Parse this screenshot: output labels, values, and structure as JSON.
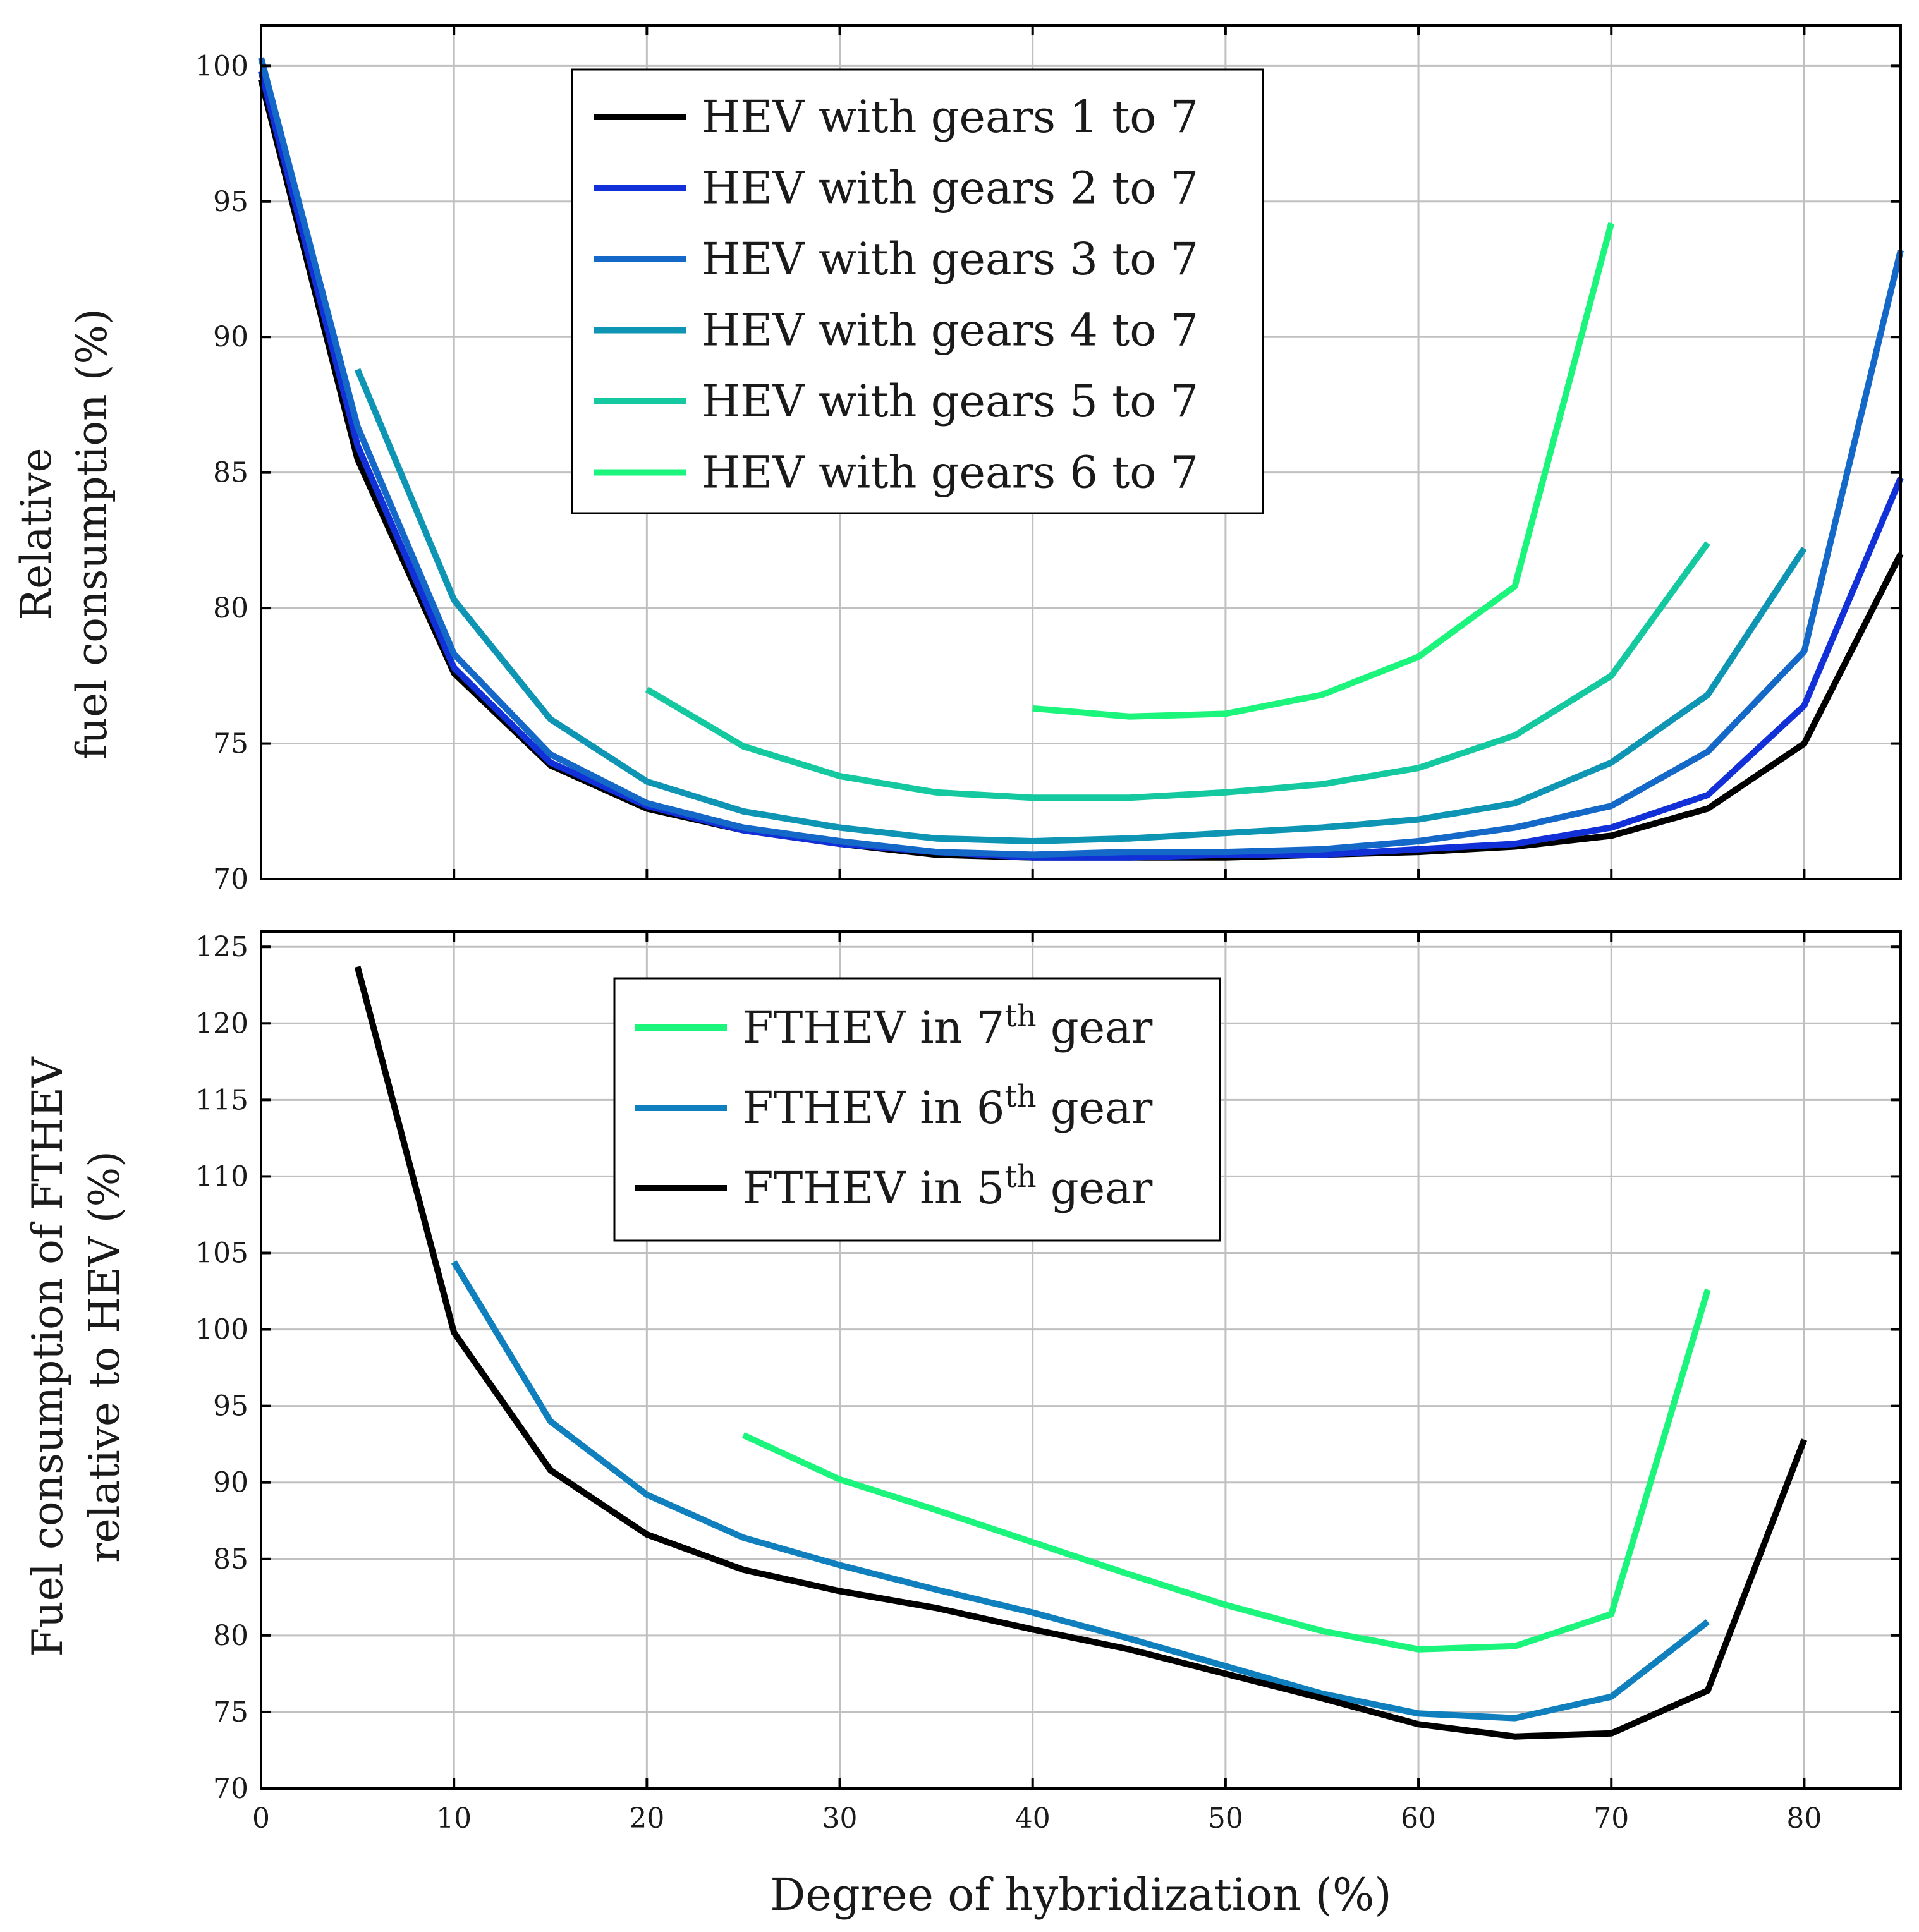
{
  "chart_data": [
    {
      "type": "line",
      "ylabel": [
        "Relative",
        "fuel consumption (%)"
      ],
      "xlim": [
        0,
        85
      ],
      "ylim": [
        70,
        101.5
      ],
      "xticks": [
        0,
        10,
        20,
        30,
        40,
        50,
        60,
        70,
        80
      ],
      "yticks": [
        70,
        75,
        80,
        85,
        90,
        95,
        100
      ],
      "grid": true,
      "legend_position": "top-center",
      "series": [
        {
          "name": "HEV with gears 1 to 7",
          "color": "#000000",
          "x": [
            0,
            5,
            10,
            15,
            20,
            25,
            30,
            35,
            40,
            45,
            50,
            55,
            60,
            65,
            70,
            75,
            80,
            85
          ],
          "y": [
            99.5,
            85.5,
            77.6,
            74.2,
            72.6,
            71.8,
            71.3,
            70.9,
            70.8,
            70.8,
            70.8,
            70.9,
            71.0,
            71.2,
            71.6,
            72.6,
            75.0,
            82.0
          ]
        },
        {
          "name": "HEV with gears 2 to 7",
          "color": "#1230d8",
          "x": [
            0,
            5,
            10,
            15,
            20,
            25,
            30,
            35,
            40,
            45,
            50,
            55,
            60,
            65,
            70,
            75,
            80,
            85
          ],
          "y": [
            99.8,
            86.0,
            77.8,
            74.3,
            72.7,
            71.8,
            71.3,
            71.0,
            70.8,
            70.8,
            70.9,
            70.9,
            71.1,
            71.3,
            71.9,
            73.1,
            76.4,
            84.8
          ]
        },
        {
          "name": "HEV with gears 3 to 7",
          "color": "#1468c8",
          "x": [
            0,
            5,
            10,
            15,
            20,
            25,
            30,
            35,
            40,
            45,
            50,
            55,
            60,
            65,
            70,
            75,
            80,
            85
          ],
          "y": [
            100.3,
            86.7,
            78.3,
            74.6,
            72.8,
            71.9,
            71.4,
            71.0,
            70.9,
            71.0,
            71.0,
            71.1,
            71.4,
            71.9,
            72.7,
            74.7,
            78.4,
            93.2
          ]
        },
        {
          "name": "HEV with gears 4 to 7",
          "color": "#0e95b4",
          "x": [
            5,
            10,
            15,
            20,
            25,
            30,
            35,
            40,
            45,
            50,
            55,
            60,
            65,
            70,
            75,
            80
          ],
          "y": [
            88.8,
            80.3,
            75.9,
            73.6,
            72.5,
            71.9,
            71.5,
            71.4,
            71.5,
            71.7,
            71.9,
            72.2,
            72.8,
            74.3,
            76.8,
            82.2
          ]
        },
        {
          "name": "HEV with gears 5 to 7",
          "color": "#14c8a0",
          "x": [
            20,
            25,
            30,
            35,
            40,
            45,
            50,
            55,
            60,
            65,
            70,
            75
          ],
          "y": [
            77.0,
            74.9,
            73.8,
            73.2,
            73.0,
            73.0,
            73.2,
            73.5,
            74.1,
            75.3,
            77.5,
            82.4
          ]
        },
        {
          "name": "HEV with gears 6 to 7",
          "color": "#1cf57c",
          "x": [
            40,
            45,
            50,
            55,
            60,
            65,
            70
          ],
          "y": [
            76.3,
            76.0,
            76.1,
            76.8,
            78.2,
            80.8,
            94.2
          ]
        }
      ]
    },
    {
      "type": "line",
      "ylabel": [
        "Fuel consumption of FTHEV",
        "relative to HEV (%)"
      ],
      "xlabel": "Degree of hybridization (%)",
      "xlim": [
        0,
        85
      ],
      "ylim": [
        70,
        126
      ],
      "xticks": [
        0,
        10,
        20,
        30,
        40,
        50,
        60,
        70,
        80
      ],
      "yticks": [
        70,
        75,
        80,
        85,
        90,
        95,
        100,
        105,
        110,
        115,
        120,
        125
      ],
      "grid": true,
      "legend_position": "top-center",
      "series": [
        {
          "name": "FTHEV in 7th gear",
          "label_base": "FTHEV in 7",
          "label_sup": "th",
          "label_tail": " gear",
          "color": "#1cf57c",
          "x": [
            25,
            30,
            35,
            40,
            45,
            50,
            55,
            60,
            65,
            70,
            75
          ],
          "y": [
            93.1,
            90.2,
            88.2,
            86.1,
            84.0,
            82.0,
            80.3,
            79.1,
            79.3,
            81.4,
            102.6
          ]
        },
        {
          "name": "FTHEV in 6th gear",
          "label_base": "FTHEV in 6",
          "label_sup": "th",
          "label_tail": " gear",
          "color": "#0f7fbe",
          "x": [
            10,
            15,
            20,
            25,
            30,
            35,
            40,
            45,
            50,
            55,
            60,
            65,
            70,
            75
          ],
          "y": [
            104.4,
            94.0,
            89.2,
            86.4,
            84.6,
            83.0,
            81.5,
            79.8,
            78.0,
            76.2,
            74.9,
            74.6,
            76.0,
            80.9
          ]
        },
        {
          "name": "FTHEV in 5th gear",
          "label_base": "FTHEV in 5",
          "label_sup": "th",
          "label_tail": " gear",
          "color": "#000000",
          "x": [
            5,
            10,
            15,
            20,
            25,
            30,
            35,
            40,
            45,
            50,
            55,
            60,
            65,
            70,
            75,
            80
          ],
          "y": [
            123.7,
            99.8,
            90.8,
            86.6,
            84.3,
            82.9,
            81.8,
            80.4,
            79.1,
            77.5,
            75.9,
            74.2,
            73.4,
            73.6,
            76.4,
            92.8
          ]
        }
      ]
    }
  ]
}
